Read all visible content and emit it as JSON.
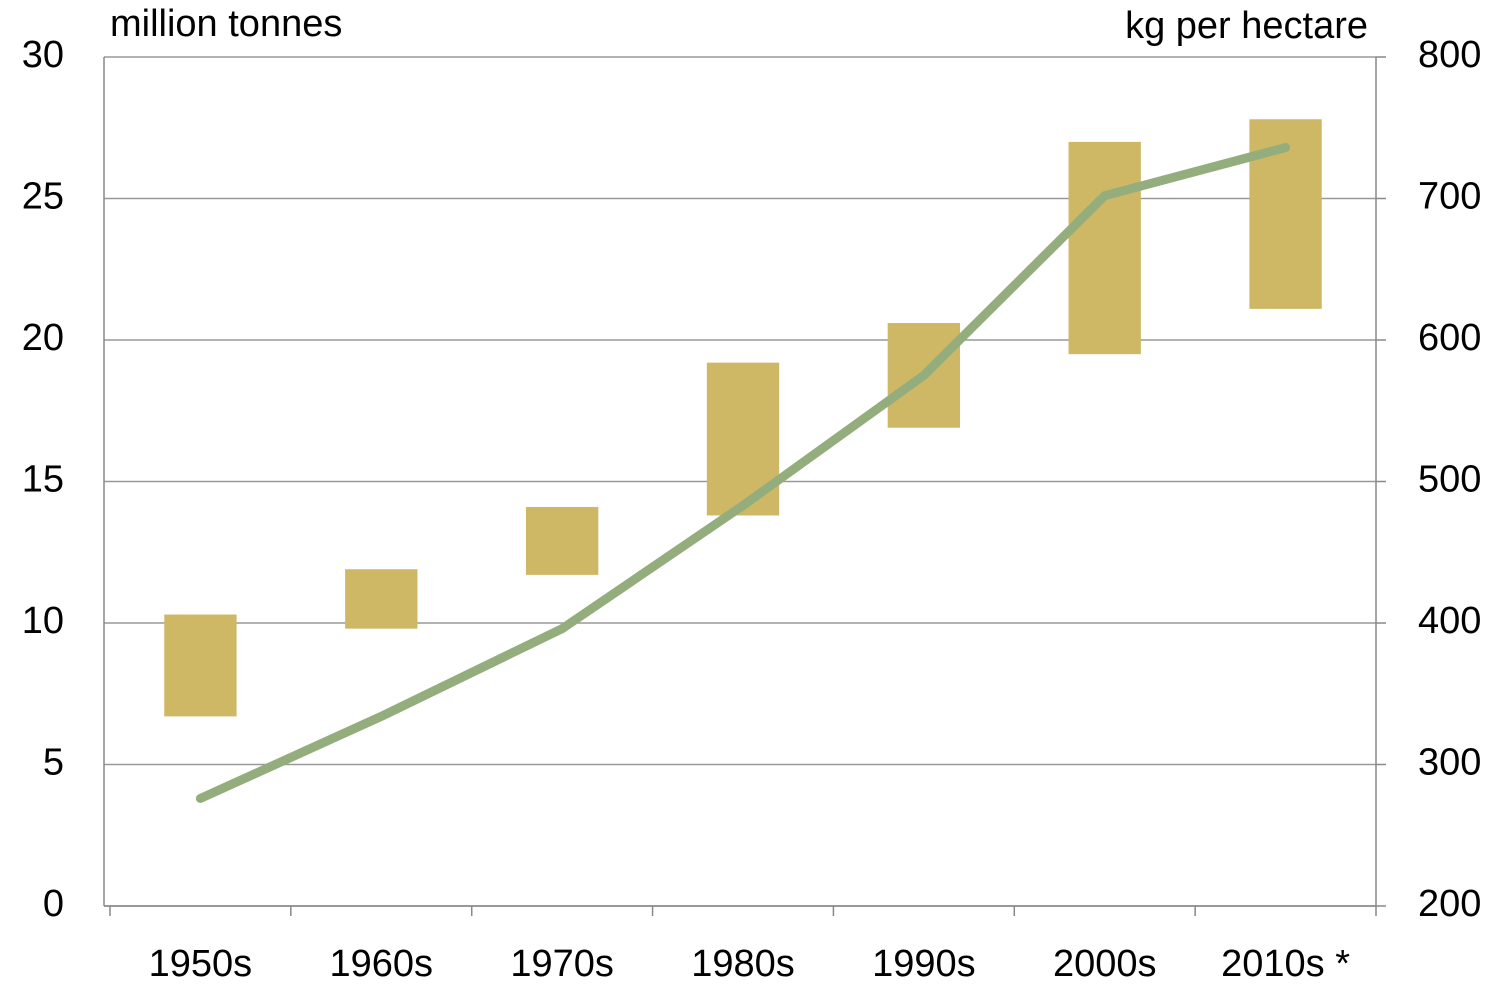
{
  "chart_data": {
    "type": "bar",
    "y_label": "million tonnes",
    "y2_label": "kg per hectare",
    "categories": [
      "1950s",
      "1960s",
      "1970s",
      "1980s",
      "1990s",
      "2000s",
      "2010s *"
    ],
    "series": [
      {
        "type": "range_bar",
        "color": "#cfb865",
        "low": [
          6.7,
          9.8,
          11.7,
          13.8,
          16.9,
          19.5,
          21.1
        ],
        "high": [
          10.3,
          11.9,
          14.1,
          19.2,
          20.6,
          27.0,
          27.8
        ]
      },
      {
        "type": "line",
        "color": "#94ad7d",
        "axis": "y2",
        "values": [
          276,
          334,
          396,
          483,
          575,
          702,
          736
        ]
      }
    ],
    "ylim": [
      0,
      30
    ],
    "yticks": [
      0,
      5,
      10,
      15,
      20,
      25,
      30
    ],
    "y2lim": [
      200,
      800
    ],
    "y2ticks": [
      200,
      300,
      400,
      500,
      600,
      700,
      800
    ],
    "grid": true
  }
}
